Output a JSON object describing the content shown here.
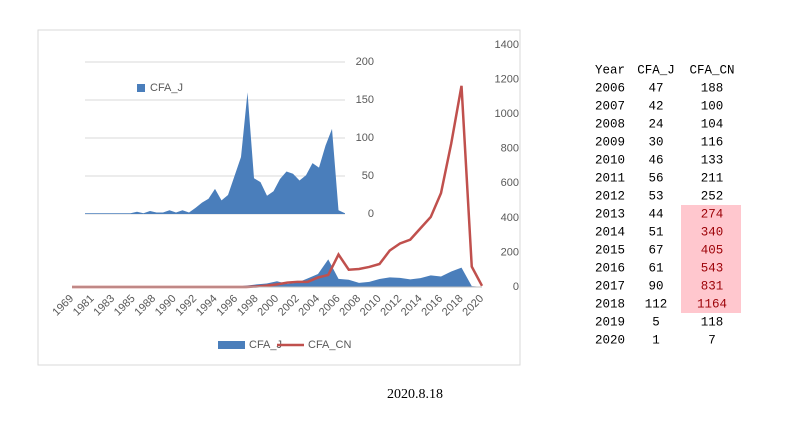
{
  "chart_data": [
    {
      "type": "combo",
      "categories": [
        1969,
        null,
        1981,
        null,
        1983,
        null,
        1985,
        null,
        1988,
        null,
        1990,
        null,
        1992,
        null,
        1994,
        null,
        1996,
        null,
        1998,
        null,
        2000,
        null,
        2002,
        null,
        2004,
        null,
        2006,
        null,
        2008,
        null,
        2010,
        null,
        2012,
        null,
        2014,
        null,
        2016,
        null,
        2018,
        null,
        2020
      ],
      "series": [
        {
          "name": "CFA_J",
          "kind": "area",
          "color": "#4a7ebb",
          "values": [
            1,
            1,
            1,
            1,
            1,
            1,
            1,
            1,
            3,
            1,
            4,
            2,
            2,
            5,
            2,
            5,
            2,
            8,
            15,
            20,
            33,
            18,
            25,
            50,
            75,
            160,
            47,
            42,
            24,
            30,
            46,
            56,
            53,
            44,
            51,
            67,
            61,
            90,
            112,
            5,
            1
          ]
        },
        {
          "name": "CFA_CN",
          "kind": "line",
          "color": "#c0504d",
          "values": [
            0,
            0,
            0,
            0,
            0,
            0,
            0,
            0,
            0,
            0,
            0,
            0,
            0,
            0,
            0,
            0,
            0,
            0,
            3,
            8,
            15,
            25,
            30,
            30,
            55,
            70,
            188,
            100,
            104,
            116,
            133,
            211,
            252,
            274,
            340,
            405,
            543,
            831,
            1164,
            118,
            7
          ]
        }
      ],
      "ylim": [
        0,
        1400
      ],
      "yticks": [
        0,
        200,
        400,
        600,
        800,
        1000,
        1200,
        1400
      ],
      "grid": false,
      "legend": "bottom"
    },
    {
      "type": "area",
      "series": [
        {
          "name": "CFA_J",
          "color": "#4a7ebb",
          "values": [
            1,
            1,
            1,
            1,
            1,
            1,
            1,
            1,
            3,
            1,
            4,
            2,
            2,
            5,
            2,
            5,
            2,
            8,
            15,
            20,
            33,
            18,
            25,
            50,
            75,
            160,
            47,
            42,
            24,
            30,
            46,
            56,
            53,
            44,
            51,
            67,
            61,
            90,
            112,
            5,
            1
          ]
        }
      ],
      "ylim": [
        0,
        200
      ],
      "yticks": [
        0,
        50,
        100,
        150,
        200
      ],
      "grid": true,
      "legend": "top-left"
    }
  ],
  "table": {
    "header": [
      "Year",
      "CFA_J",
      "CFA_CN"
    ],
    "rows": [
      [
        2006,
        47,
        188
      ],
      [
        2007,
        42,
        100
      ],
      [
        2008,
        24,
        104
      ],
      [
        2009,
        30,
        116
      ],
      [
        2010,
        46,
        133
      ],
      [
        2011,
        56,
        211
      ],
      [
        2012,
        53,
        252
      ],
      [
        2013,
        44,
        274
      ],
      [
        2014,
        51,
        340
      ],
      [
        2015,
        67,
        405
      ],
      [
        2016,
        61,
        543
      ],
      [
        2017,
        90,
        831
      ],
      [
        2018,
        112,
        1164
      ],
      [
        2019,
        5,
        118
      ],
      [
        2020,
        1,
        7
      ]
    ],
    "highlight_column": 2,
    "highlight_rows": [
      7,
      8,
      9,
      10,
      11,
      12
    ],
    "highlight_color": "#ffc7ce",
    "highlight_text_color": "#9c0006"
  },
  "footer": "2020.8.18"
}
